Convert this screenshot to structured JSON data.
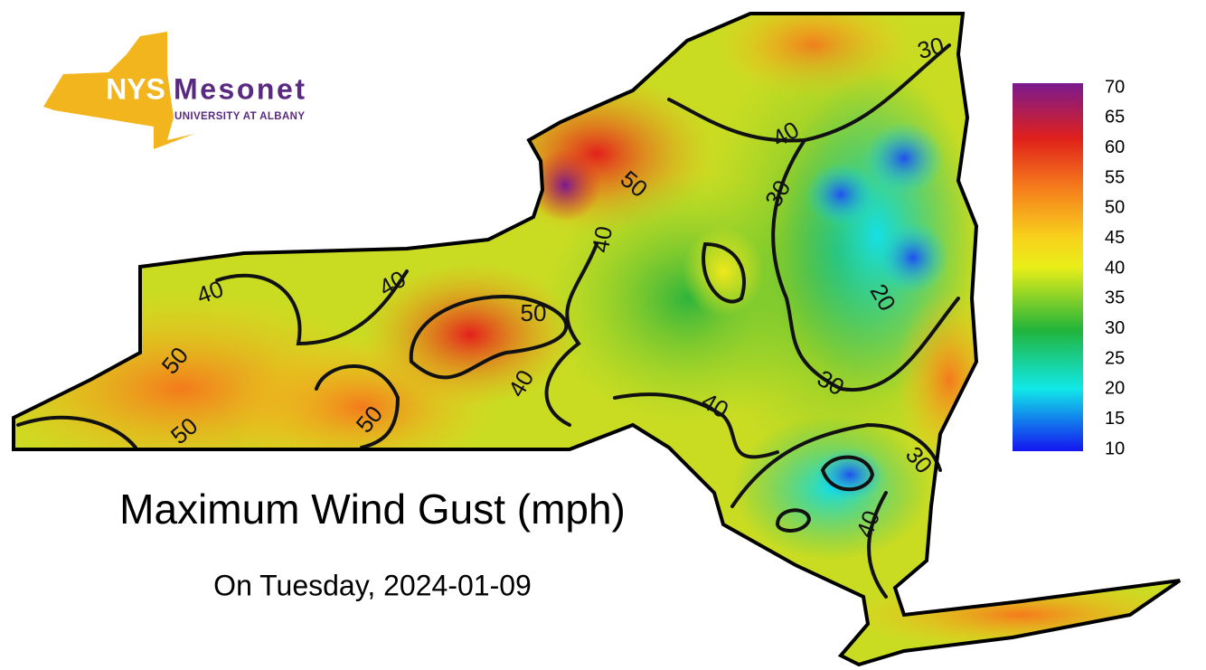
{
  "logo": {
    "abbr": "NYS",
    "name": "Mesonet",
    "org": "UNIVERSITY AT ALBANY"
  },
  "title": "Maximum Wind Gust (mph)",
  "subtitle": "On Tuesday, 2024-01-09",
  "colorbar": {
    "lim": [
      10,
      70
    ],
    "ticks": [
      70,
      65,
      60,
      55,
      50,
      45,
      40,
      35,
      30,
      25,
      20,
      15,
      10
    ]
  },
  "contour_labels": [
    40,
    30,
    30,
    20,
    30,
    40,
    30,
    40,
    40,
    40,
    50,
    50,
    40,
    50,
    50,
    40,
    50
  ]
}
